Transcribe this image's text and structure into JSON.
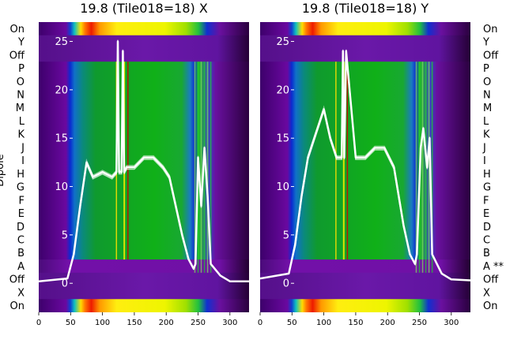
{
  "chart_data": [
    {
      "type": "heatmap",
      "title": "19.8 (Tile018=18) X",
      "ylabel": "Dipole",
      "xlim": [
        0,
        330
      ],
      "xticks": [
        0,
        50,
        100,
        150,
        200,
        250,
        300
      ],
      "row_labels_top_to_bottom": [
        "On",
        "Y",
        "Off",
        "P",
        "O",
        "N",
        "M",
        "L",
        "K",
        "J",
        "I",
        "H",
        "G",
        "F",
        "E",
        "D",
        "C",
        "B",
        "A",
        "Off",
        "X",
        "On"
      ],
      "overlay_axis": {
        "ylim": [
          -3,
          27
        ],
        "yticks": [
          0,
          5,
          10,
          15,
          20,
          25
        ]
      },
      "overlay_lines": [
        {
          "x": [
            0,
            45,
            55,
            65,
            75,
            85,
            100,
            115,
            122,
            124,
            126,
            130,
            132,
            134,
            138,
            150,
            165,
            180,
            195,
            205,
            215,
            225,
            235,
            243,
            246,
            250,
            255,
            260,
            265,
            270,
            285,
            300,
            330
          ],
          "y": [
            0.2,
            0.5,
            3,
            8,
            12.5,
            11,
            11.5,
            11,
            11.5,
            25,
            11.5,
            11.5,
            24,
            11.5,
            12,
            12,
            13,
            13,
            12,
            11,
            8,
            5,
            2.5,
            1.5,
            2,
            13,
            8,
            14,
            9,
            2,
            0.8,
            0.2,
            0.2
          ]
        }
      ]
    },
    {
      "type": "heatmap",
      "title": "19.8 (Tile018=18) Y",
      "xlim": [
        0,
        330
      ],
      "xticks": [
        0,
        50,
        100,
        150,
        200,
        250,
        300
      ],
      "row_labels_top_to_bottom": [
        "On",
        "Y",
        "Off",
        "P",
        "O",
        "N",
        "M",
        "L",
        "K",
        "J",
        "I",
        "H",
        "G",
        "F",
        "E",
        "D",
        "C",
        "B",
        "A **",
        "Off",
        "X",
        "On"
      ],
      "overlay_axis": {
        "ylim": [
          -3,
          27
        ],
        "yticks": [
          0,
          5,
          10,
          15,
          20,
          25
        ]
      },
      "overlay_lines": [
        {
          "x": [
            0,
            45,
            55,
            65,
            75,
            85,
            95,
            100,
            110,
            120,
            128,
            130,
            132,
            135,
            150,
            165,
            180,
            195,
            210,
            225,
            235,
            243,
            246,
            252,
            256,
            262,
            266,
            270,
            285,
            300,
            330
          ],
          "y": [
            0.5,
            1,
            4,
            9,
            13,
            15,
            17,
            18,
            15,
            13,
            13,
            24,
            13,
            24,
            13,
            13,
            14,
            14,
            12,
            6,
            3,
            2,
            3,
            14,
            16,
            12,
            15,
            3,
            1,
            0.4,
            0.3
          ]
        }
      ]
    }
  ]
}
